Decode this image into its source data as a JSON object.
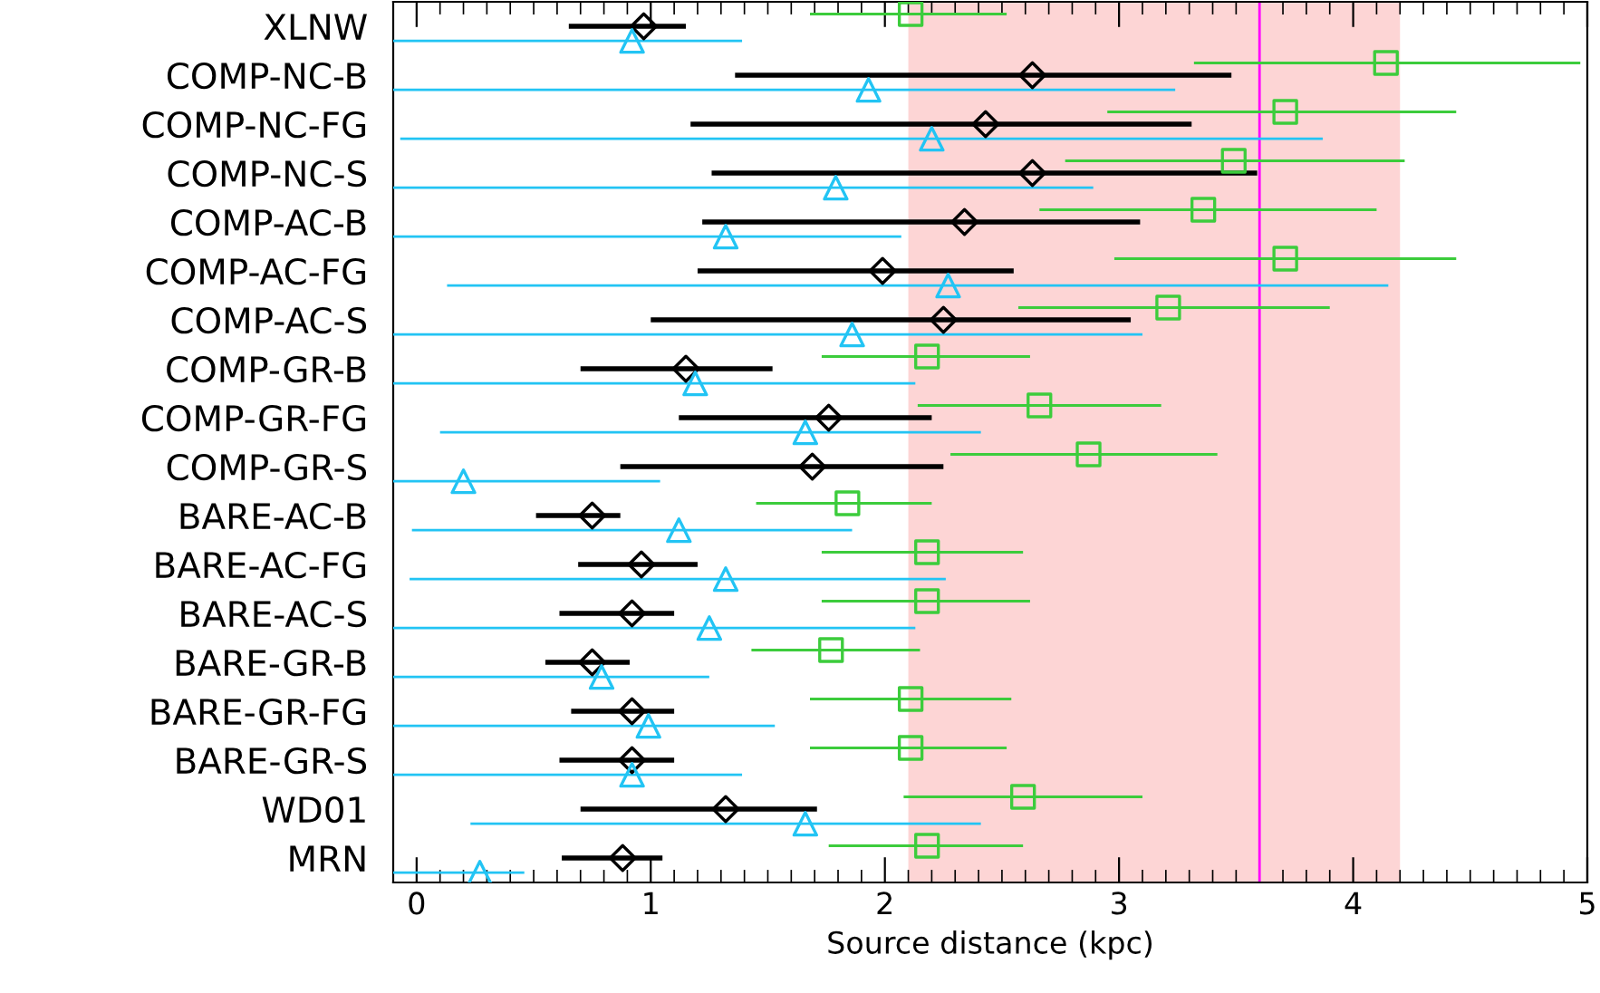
{
  "chart_data": {
    "type": "scatter",
    "orientation": "horizontal",
    "xlabel": "Source distance (kpc)",
    "categories": [
      "XLNW",
      "COMP-NC-B",
      "COMP-NC-FG",
      "COMP-NC-S",
      "COMP-AC-B",
      "COMP-AC-FG",
      "COMP-AC-S",
      "COMP-GR-B",
      "COMP-GR-FG",
      "COMP-GR-S",
      "BARE-AC-B",
      "BARE-AC-FG",
      "BARE-AC-S",
      "BARE-GR-B",
      "BARE-GR-FG",
      "BARE-GR-S",
      "WD01",
      "MRN"
    ],
    "xlim": [
      -0.1,
      5
    ],
    "xticks": [
      0,
      1,
      2,
      3,
      4,
      5
    ],
    "grid": false,
    "legend": false,
    "series": [
      {
        "color": "#000000",
        "marker": "diamond",
        "values": [
          0.97,
          2.63,
          2.43,
          2.63,
          2.34,
          1.99,
          2.25,
          1.15,
          1.76,
          1.69,
          0.75,
          0.96,
          0.92,
          0.75,
          0.92,
          0.92,
          1.32,
          0.88
        ],
        "errors": [
          [
            0.65,
            1.15
          ],
          [
            1.36,
            3.48
          ],
          [
            1.17,
            3.31
          ],
          [
            1.26,
            3.59
          ],
          [
            1.22,
            3.09
          ],
          [
            1.2,
            2.55
          ],
          [
            1.0,
            3.05
          ],
          [
            0.7,
            1.52
          ],
          [
            1.12,
            2.2
          ],
          [
            0.87,
            2.25
          ],
          [
            0.51,
            0.87
          ],
          [
            0.69,
            1.2
          ],
          [
            0.61,
            1.1
          ],
          [
            0.55,
            0.91
          ],
          [
            0.66,
            1.1
          ],
          [
            0.61,
            1.1
          ],
          [
            0.7,
            1.71
          ],
          [
            0.62,
            1.05
          ]
        ]
      },
      {
        "color": "#22c4f4",
        "marker": "triangle",
        "values": [
          0.92,
          1.93,
          2.2,
          1.79,
          1.32,
          2.27,
          1.86,
          1.19,
          1.66,
          0.2,
          1.12,
          1.32,
          1.25,
          0.79,
          0.99,
          0.92,
          1.66,
          0.27
        ],
        "errors": [
          [
            -0.1,
            1.39
          ],
          [
            -0.1,
            3.24
          ],
          [
            -0.07,
            3.87
          ],
          [
            -0.1,
            2.89
          ],
          [
            -0.1,
            2.07
          ],
          [
            0.13,
            4.15
          ],
          [
            -0.1,
            3.1
          ],
          [
            -0.1,
            2.13
          ],
          [
            0.1,
            2.41
          ],
          [
            -0.1,
            1.04
          ],
          [
            -0.02,
            1.86
          ],
          [
            -0.03,
            2.26
          ],
          [
            -0.1,
            2.13
          ],
          [
            -0.1,
            1.25
          ],
          [
            -0.1,
            1.53
          ],
          [
            -0.1,
            1.39
          ],
          [
            0.23,
            2.41
          ],
          [
            -0.1,
            0.46
          ]
        ]
      },
      {
        "color": "#3ccc3c",
        "marker": "square",
        "values": [
          2.11,
          4.14,
          3.71,
          3.49,
          3.36,
          3.71,
          3.21,
          2.18,
          2.66,
          2.87,
          1.84,
          2.18,
          2.18,
          1.77,
          2.11,
          2.11,
          2.59,
          2.18
        ],
        "errors": [
          [
            1.68,
            2.52
          ],
          [
            3.32,
            4.97
          ],
          [
            2.95,
            4.44
          ],
          [
            2.77,
            4.22
          ],
          [
            2.66,
            4.1
          ],
          [
            2.98,
            4.44
          ],
          [
            2.57,
            3.9
          ],
          [
            1.73,
            2.62
          ],
          [
            2.14,
            3.18
          ],
          [
            2.28,
            3.42
          ],
          [
            1.45,
            2.2
          ],
          [
            1.73,
            2.59
          ],
          [
            1.73,
            2.62
          ],
          [
            1.43,
            2.15
          ],
          [
            1.68,
            2.54
          ],
          [
            1.68,
            2.52
          ],
          [
            2.08,
            3.1
          ],
          [
            1.76,
            2.59
          ]
        ]
      }
    ],
    "bands": [
      {
        "axis": "x",
        "from": 2.1,
        "to": 4.2,
        "color": "#fdd5d5"
      }
    ],
    "ref_lines": [
      {
        "axis": "x",
        "value": 3.6,
        "color": "#ff00ff",
        "line_style": "solid"
      }
    ]
  }
}
